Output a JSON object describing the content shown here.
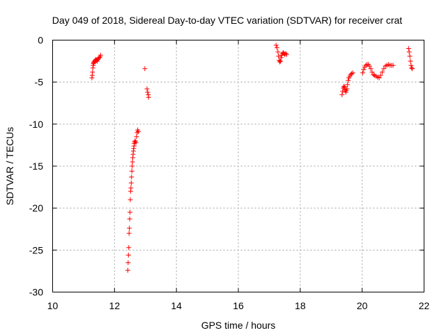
{
  "chart_data": {
    "type": "scatter",
    "title": "Day 049 of 2018, Sidereal Day-to-day VTEC variation (SDTVAR) for receiver crat",
    "xlabel": "GPS time / hours",
    "ylabel": "SDTVAR / TECUs",
    "xlim": [
      10,
      22
    ],
    "ylim": [
      -30,
      0
    ],
    "xticks": [
      10,
      12,
      14,
      16,
      18,
      20,
      22
    ],
    "xtick_labels": [
      "10",
      "12",
      "14",
      "16",
      "18",
      "20",
      "22"
    ],
    "yticks": [
      0,
      -5,
      -10,
      -15,
      -20,
      -25,
      -30
    ],
    "ytick_labels": [
      "0",
      "-5",
      "-10",
      "-15",
      "-20",
      "-25",
      "-30"
    ],
    "grid": true,
    "marker": "+",
    "color": "#ff0000",
    "series": [
      {
        "name": "SDTVAR",
        "x": [
          11.27,
          11.28,
          11.29,
          11.3,
          11.31,
          11.32,
          11.33,
          11.34,
          11.36,
          11.38,
          11.4,
          11.42,
          11.44,
          11.46,
          11.48,
          11.5,
          11.53,
          11.55,
          12.43,
          12.44,
          12.45,
          12.46,
          12.47,
          12.48,
          12.49,
          12.5,
          12.51,
          12.52,
          12.53,
          12.54,
          12.55,
          12.56,
          12.57,
          12.58,
          12.59,
          12.6,
          12.61,
          12.62,
          12.63,
          12.64,
          12.65,
          12.67,
          12.69,
          12.71,
          12.73,
          12.75,
          12.77,
          12.98,
          13.05,
          13.07,
          13.09,
          13.1,
          17.22,
          17.25,
          17.28,
          17.3,
          17.32,
          17.34,
          17.36,
          17.38,
          17.4,
          17.42,
          17.45,
          17.48,
          17.5,
          17.53,
          17.56,
          19.35,
          19.37,
          19.39,
          19.41,
          19.43,
          19.45,
          19.47,
          19.49,
          19.51,
          19.53,
          19.55,
          19.57,
          19.6,
          19.63,
          19.66,
          19.7,
          20.02,
          20.05,
          20.08,
          20.12,
          20.16,
          20.2,
          20.24,
          20.28,
          20.32,
          20.36,
          20.4,
          20.45,
          20.5,
          20.55,
          20.6,
          20.65,
          20.7,
          20.75,
          20.8,
          20.85,
          20.9,
          20.95,
          21.0,
          21.5,
          21.52,
          21.54,
          21.56,
          21.58,
          21.6,
          21.62
        ],
        "y": [
          -4.5,
          -4.2,
          -3.8,
          -3.3,
          -3.0,
          -2.8,
          -2.7,
          -2.6,
          -2.5,
          -2.4,
          -2.3,
          -2.4,
          -2.5,
          -2.3,
          -2.2,
          -2.1,
          -2.0,
          -1.8,
          -27.4,
          -26.5,
          -25.6,
          -24.7,
          -23.0,
          -22.4,
          -21.3,
          -20.5,
          -19.0,
          -18.0,
          -17.6,
          -17.0,
          -16.3,
          -15.6,
          -15.0,
          -14.5,
          -14.0,
          -13.6,
          -13.2,
          -12.9,
          -12.6,
          -12.3,
          -12.1,
          -12.0,
          -12.2,
          -11.5,
          -11.0,
          -10.7,
          -10.9,
          -3.4,
          -5.8,
          -6.2,
          -6.5,
          -6.8,
          -0.6,
          -0.9,
          -1.4,
          -1.9,
          -2.4,
          -2.6,
          -2.5,
          -2.1,
          -1.8,
          -1.6,
          -1.5,
          -1.6,
          -1.7,
          -1.6,
          -1.7,
          -6.5,
          -6.1,
          -5.7,
          -5.5,
          -5.6,
          -5.9,
          -6.2,
          -6.0,
          -5.8,
          -5.3,
          -4.8,
          -4.5,
          -4.3,
          -4.1,
          -4.0,
          -3.9,
          -3.9,
          -3.5,
          -3.2,
          -3.0,
          -2.9,
          -2.9,
          -3.1,
          -3.4,
          -3.8,
          -4.1,
          -4.2,
          -4.3,
          -4.4,
          -4.5,
          -4.2,
          -3.8,
          -3.4,
          -3.1,
          -3.0,
          -2.9,
          -3.0,
          -3.0,
          -3.0,
          -1.0,
          -1.4,
          -1.9,
          -2.5,
          -3.0,
          -3.3,
          -3.4
        ]
      }
    ]
  }
}
